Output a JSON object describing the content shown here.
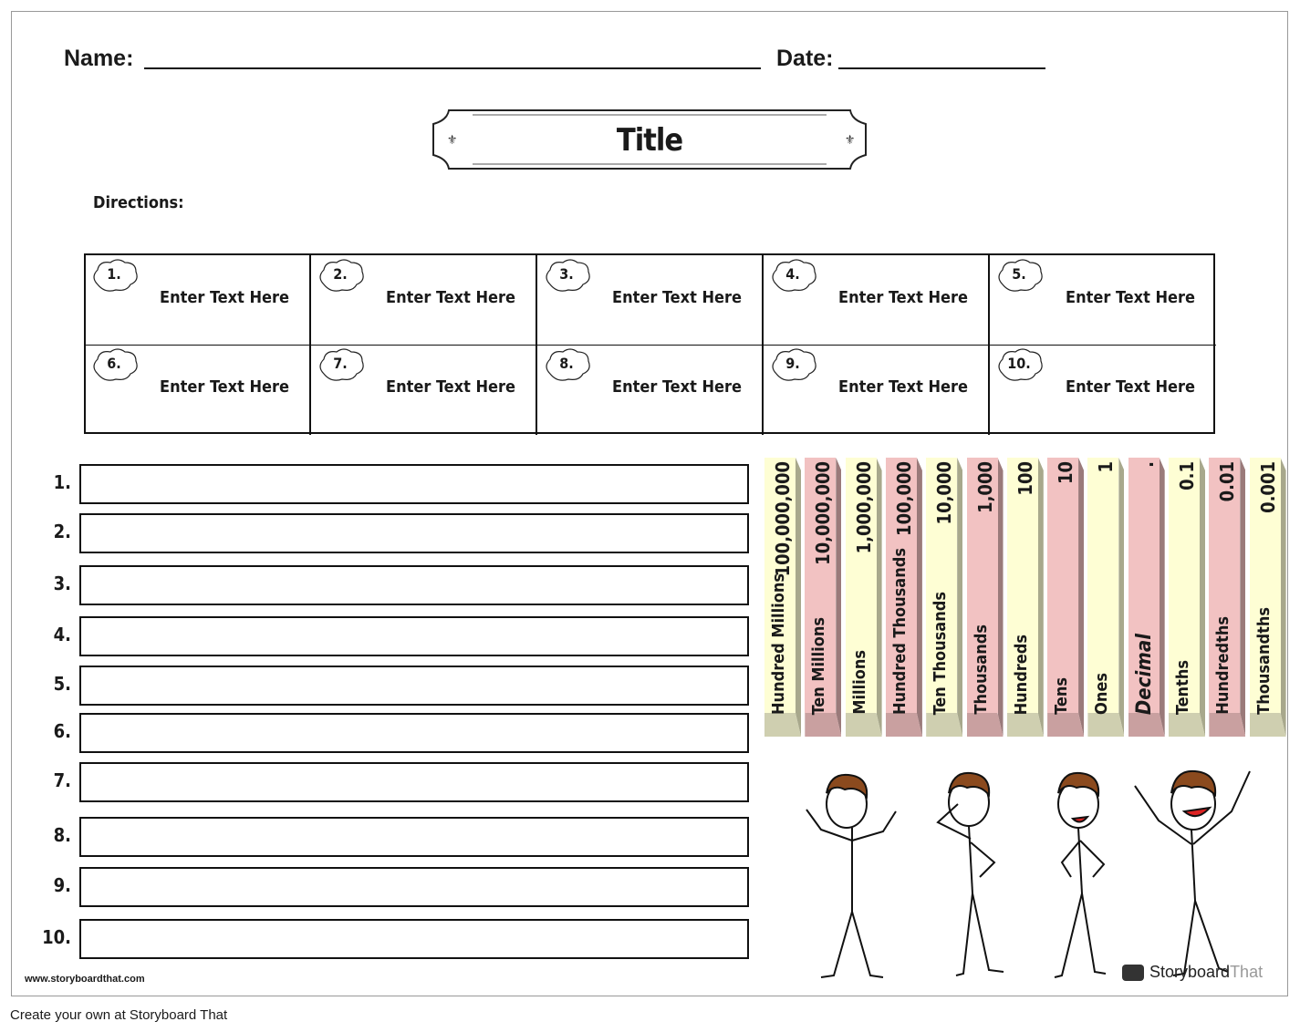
{
  "header": {
    "name_label": "Name:",
    "date_label": "Date:"
  },
  "title": "Title",
  "directions_label": "Directions:",
  "grid_cells": [
    {
      "num": "1.",
      "text": "Enter Text Here"
    },
    {
      "num": "2.",
      "text": "Enter Text Here"
    },
    {
      "num": "3.",
      "text": "Enter Text Here"
    },
    {
      "num": "4.",
      "text": "Enter Text Here"
    },
    {
      "num": "5.",
      "text": "Enter Text Here"
    },
    {
      "num": "6.",
      "text": "Enter Text Here"
    },
    {
      "num": "7.",
      "text": "Enter Text Here"
    },
    {
      "num": "8.",
      "text": "Enter Text Here"
    },
    {
      "num": "9.",
      "text": "Enter Text Here"
    },
    {
      "num": "10.",
      "text": "Enter Text Here"
    }
  ],
  "answer_labels": [
    "1.",
    "2.",
    "3.",
    "4.",
    "5.",
    "6.",
    "7.",
    "8.",
    "9.",
    "10."
  ],
  "place_values": [
    {
      "value": "100,000,000",
      "label": "Hundred Millions",
      "color": "yellow"
    },
    {
      "value": "10,000,000",
      "label": "Ten Millions",
      "color": "pink"
    },
    {
      "value": "1,000,000",
      "label": "Millions",
      "color": "yellow"
    },
    {
      "value": "100,000",
      "label": "Hundred Thousands",
      "color": "pink"
    },
    {
      "value": "10,000",
      "label": "Ten Thousands",
      "color": "yellow"
    },
    {
      "value": "1,000",
      "label": "Thousands",
      "color": "pink"
    },
    {
      "value": "100",
      "label": "Hundreds",
      "color": "yellow"
    },
    {
      "value": "10",
      "label": "Tens",
      "color": "pink"
    },
    {
      "value": "1",
      "label": "Ones",
      "color": "yellow"
    },
    {
      "value": ".",
      "label": "Decimal",
      "color": "pink"
    },
    {
      "value": "0.1",
      "label": "Tenths",
      "color": "yellow"
    },
    {
      "value": "0.01",
      "label": "Hundredths",
      "color": "pink"
    },
    {
      "value": "0.001",
      "label": "Thousandths",
      "color": "yellow"
    }
  ],
  "colors": {
    "yellow_face": "#fefed4",
    "yellow_side": "#a8a88c",
    "yellow_base": "#cfcfb0",
    "pink_face": "#f2c2c2",
    "pink_side": "#9a7a7a",
    "pink_base": "#c9a0a0",
    "hair": "#8b4a1e"
  },
  "footer": {
    "site": "www.storyboardthat.com",
    "cta": "Create your own at Storyboard That",
    "logo_a": "Storyboard",
    "logo_b": "That"
  }
}
